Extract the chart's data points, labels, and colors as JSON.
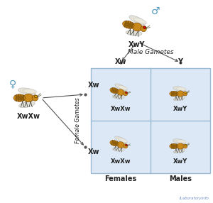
{
  "bg_color": "#ffffff",
  "grid_bg": "#dce8f5",
  "male_symbol": "♂",
  "female_symbol": "♀",
  "male_genotype": "XwY",
  "female_genotype": "XwXw",
  "male_gametes_label": "Male Gametes",
  "female_gametes_label": "Female Gametes",
  "gamete_xw": "Xw",
  "gamete_y": "Y",
  "cell_labels": [
    "XwXw",
    "XwY",
    "XwXw",
    "XwY"
  ],
  "bottom_labels": [
    "Females",
    "Males"
  ],
  "watermark": "iLaboratoryinfo",
  "watermark_color": "#5577bb",
  "text_color": "#222222",
  "line_color": "#555555",
  "grid_line_color": "#9bbbd4",
  "fly_body": "#c8881a",
  "fly_stripe": "#5a3800",
  "fly_wing": "#e0ddd0",
  "fly_eye_red": "#cc1100",
  "fly_eye_yellow": "#ddaa00",
  "fly_leg": "#333333"
}
